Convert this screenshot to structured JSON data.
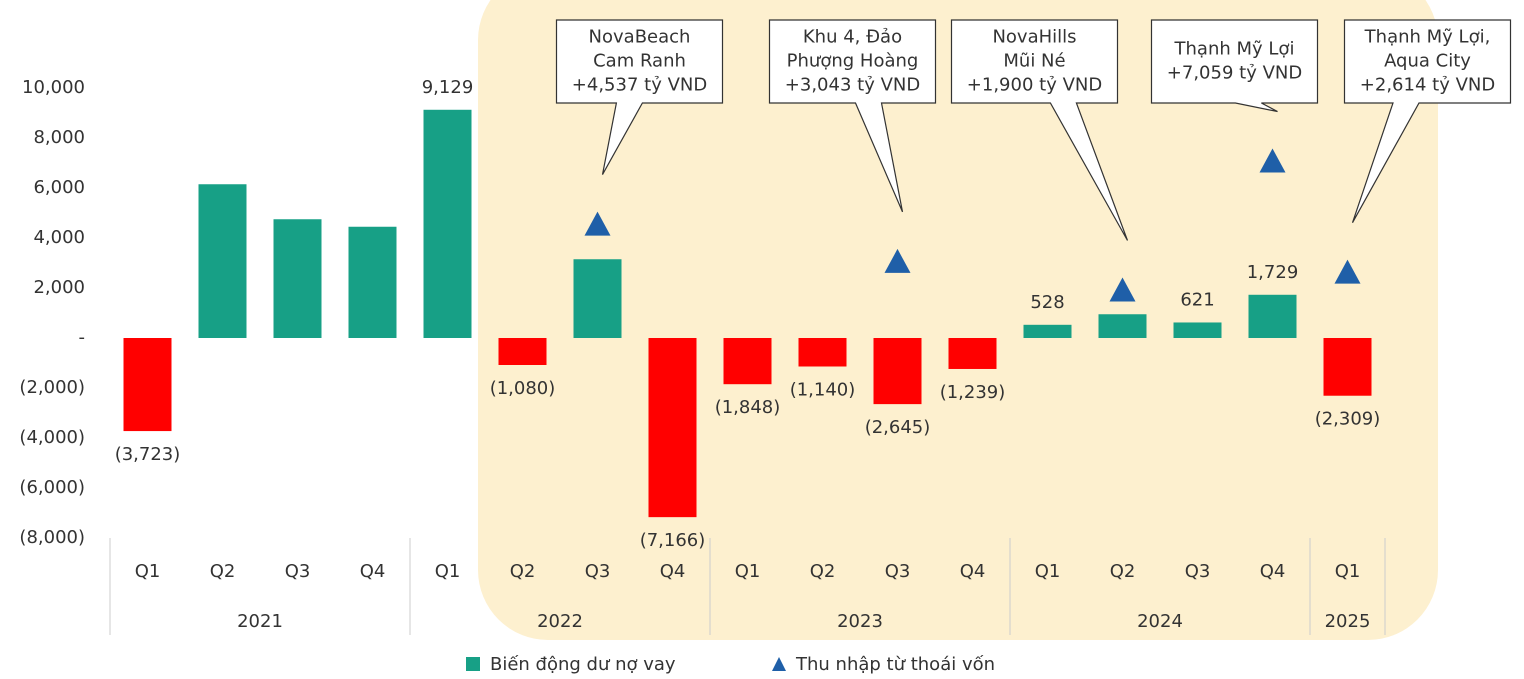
{
  "chart_data": {
    "type": "bar",
    "categories": [
      "Q1",
      "Q2",
      "Q3",
      "Q4",
      "Q1",
      "Q2",
      "Q3",
      "Q4",
      "Q1",
      "Q2",
      "Q3",
      "Q4",
      "Q1",
      "Q2",
      "Q3",
      "Q4",
      "Q1"
    ],
    "groups": [
      {
        "label": "2021",
        "count": 4
      },
      {
        "label": "2022",
        "count": 4
      },
      {
        "label": "2023",
        "count": 4
      },
      {
        "label": "2024",
        "count": 4
      },
      {
        "label": "2025",
        "count": 1
      }
    ],
    "series": [
      {
        "name": "Biến động dư nợ vay",
        "type": "bar",
        "color": "#17a086",
        "negative_color": "#ff0000",
        "values": [
          -3723,
          6150,
          4750,
          4450,
          9129,
          -1080,
          3150,
          -7166,
          -1848,
          -1140,
          -2645,
          -1239,
          528,
          950,
          621,
          1729,
          -2309
        ],
        "value_labels": [
          "(3,723)",
          null,
          null,
          null,
          "9,129",
          "(1,080)",
          null,
          "(7,166)",
          "(1,848)",
          "(1,140)",
          "(2,645)",
          "(1,239)",
          "528",
          null,
          "621",
          "1,729",
          "(2,309)"
        ]
      },
      {
        "name": "Thu nhập từ thoái vốn",
        "type": "triangle",
        "color": "#1f5fa8",
        "values": [
          null,
          null,
          null,
          null,
          null,
          null,
          4537,
          null,
          null,
          null,
          3043,
          null,
          null,
          1900,
          null,
          7059,
          2614
        ]
      }
    ],
    "annotations": [
      [
        "NovaBeach",
        "Cam Ranh",
        "+4,537 tỷ VND"
      ],
      [
        "Khu 4, Đảo",
        "Phượng Hoàng",
        "+3,043 tỷ VND"
      ],
      [
        "NovaHills",
        "Mũi Né",
        "+1,900 tỷ VND"
      ],
      [
        "Thạnh Mỹ Lợi",
        "+7,059 tỷ VND"
      ],
      [
        "Thạnh Mỹ Lợi,",
        "Aqua City",
        "+2,614 tỷ VND"
      ]
    ],
    "ylim": [
      -8000,
      10000
    ],
    "yticks": [
      {
        "value": -8000,
        "label": "(8,000)"
      },
      {
        "value": -6000,
        "label": "(6,000)"
      },
      {
        "value": -4000,
        "label": "(4,000)"
      },
      {
        "value": -2000,
        "label": "(2,000)"
      },
      {
        "value": 0,
        "label": "-"
      },
      {
        "value": 2000,
        "label": "2,000"
      },
      {
        "value": 4000,
        "label": "4,000"
      },
      {
        "value": 6000,
        "label": "6,000"
      },
      {
        "value": 8000,
        "label": "8,000"
      },
      {
        "value": 10000,
        "label": "10,000"
      }
    ],
    "grid": false
  }
}
